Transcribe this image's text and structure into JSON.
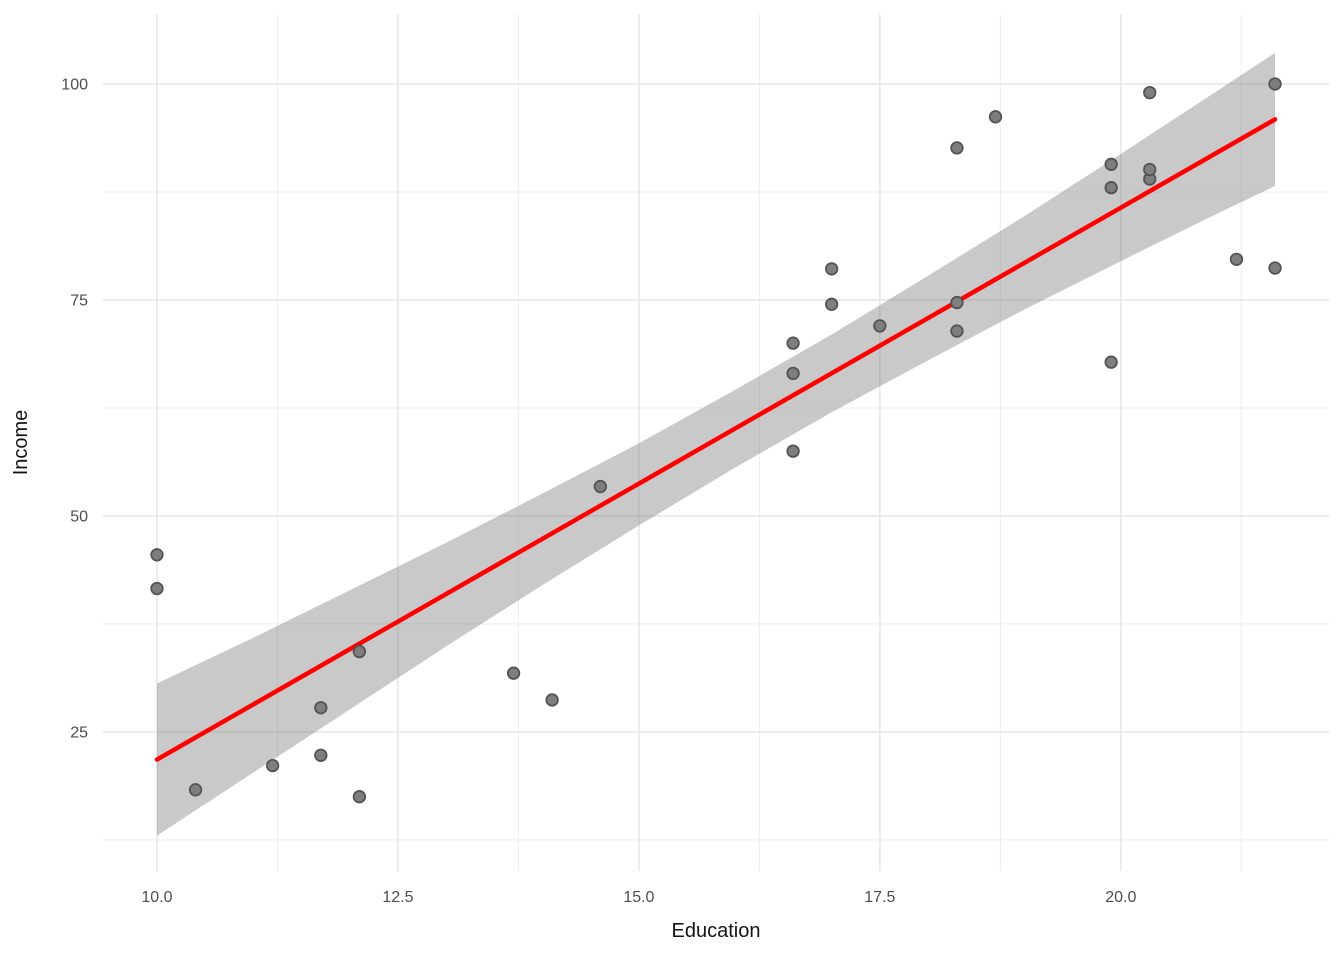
{
  "figure": {
    "background": "#ffffff"
  },
  "chart_data": {
    "type": "scatter",
    "title": "",
    "xlabel": "Education",
    "ylabel": "Income",
    "x_domain": [
      9.44,
      22.16
    ],
    "y_domain": [
      8.9,
      108.1
    ],
    "grid": true,
    "legend": "none",
    "x_ticks": [
      {
        "value": 10.0,
        "label": "10.0"
      },
      {
        "value": 12.5,
        "label": "12.5"
      },
      {
        "value": 15.0,
        "label": "15.0"
      },
      {
        "value": 17.5,
        "label": "17.5"
      },
      {
        "value": 20.0,
        "label": "20.0"
      }
    ],
    "y_ticks": [
      {
        "value": 25,
        "label": "25"
      },
      {
        "value": 50,
        "label": "50"
      },
      {
        "value": 75,
        "label": "75"
      },
      {
        "value": 100,
        "label": "100"
      }
    ],
    "x_minor_ticks": [
      11.25,
      13.75,
      16.25,
      18.75,
      21.25
    ],
    "y_minor_ticks": [
      12.5,
      37.5,
      62.5,
      87.5
    ],
    "points": [
      [
        10.0,
        45.5
      ],
      [
        10.0,
        41.6
      ],
      [
        10.4,
        18.3
      ],
      [
        11.2,
        21.1
      ],
      [
        11.7,
        27.8
      ],
      [
        11.7,
        22.3
      ],
      [
        12.1,
        34.3
      ],
      [
        12.1,
        17.5
      ],
      [
        13.7,
        31.8
      ],
      [
        14.1,
        28.7
      ],
      [
        14.6,
        53.4
      ],
      [
        16.6,
        57.5
      ],
      [
        16.6,
        66.5
      ],
      [
        16.6,
        70.0
      ],
      [
        17.0,
        74.5
      ],
      [
        17.0,
        78.6
      ],
      [
        17.5,
        72.0
      ],
      [
        18.3,
        71.4
      ],
      [
        18.3,
        74.7
      ],
      [
        18.3,
        92.6
      ],
      [
        18.7,
        96.2
      ],
      [
        19.9,
        67.8
      ],
      [
        19.9,
        88.0
      ],
      [
        19.9,
        90.7
      ],
      [
        20.3,
        89.0
      ],
      [
        20.3,
        90.1
      ],
      [
        20.3,
        99.0
      ],
      [
        21.2,
        79.7
      ],
      [
        21.6,
        78.7
      ],
      [
        21.6,
        100.0
      ]
    ],
    "regression_line": {
      "x1": 10.0,
      "y1": 21.8,
      "x2": 21.6,
      "y2": 95.9
    },
    "confidence_band": [
      {
        "x": 10.0,
        "lower": 13.0,
        "upper": 30.6
      },
      {
        "x": 11.0,
        "lower": 20.3,
        "upper": 35.9
      },
      {
        "x": 12.0,
        "lower": 27.6,
        "upper": 41.4
      },
      {
        "x": 13.0,
        "lower": 34.9,
        "upper": 46.9
      },
      {
        "x": 14.0,
        "lower": 42.0,
        "upper": 52.6
      },
      {
        "x": 15.0,
        "lower": 48.9,
        "upper": 58.4
      },
      {
        "x": 16.0,
        "lower": 55.6,
        "upper": 64.6
      },
      {
        "x": 17.0,
        "lower": 62.0,
        "upper": 71.0
      },
      {
        "x": 18.0,
        "lower": 68.0,
        "upper": 77.8
      },
      {
        "x": 19.0,
        "lower": 73.9,
        "upper": 84.7
      },
      {
        "x": 20.0,
        "lower": 79.5,
        "upper": 91.9
      },
      {
        "x": 21.0,
        "lower": 85.0,
        "upper": 99.2
      },
      {
        "x": 21.6,
        "lower": 88.2,
        "upper": 103.6
      }
    ],
    "colors": {
      "line": "#ff0000",
      "band": "#787878",
      "band_alpha": 0.4,
      "point_fill": "#7e7e7e",
      "point_stroke": "#525252",
      "grid_major": "#e4e4e4",
      "grid_minor": "#ededed",
      "tick_text": "#4d4d4d",
      "title_text": "#141414",
      "background": "#ffffff"
    }
  }
}
